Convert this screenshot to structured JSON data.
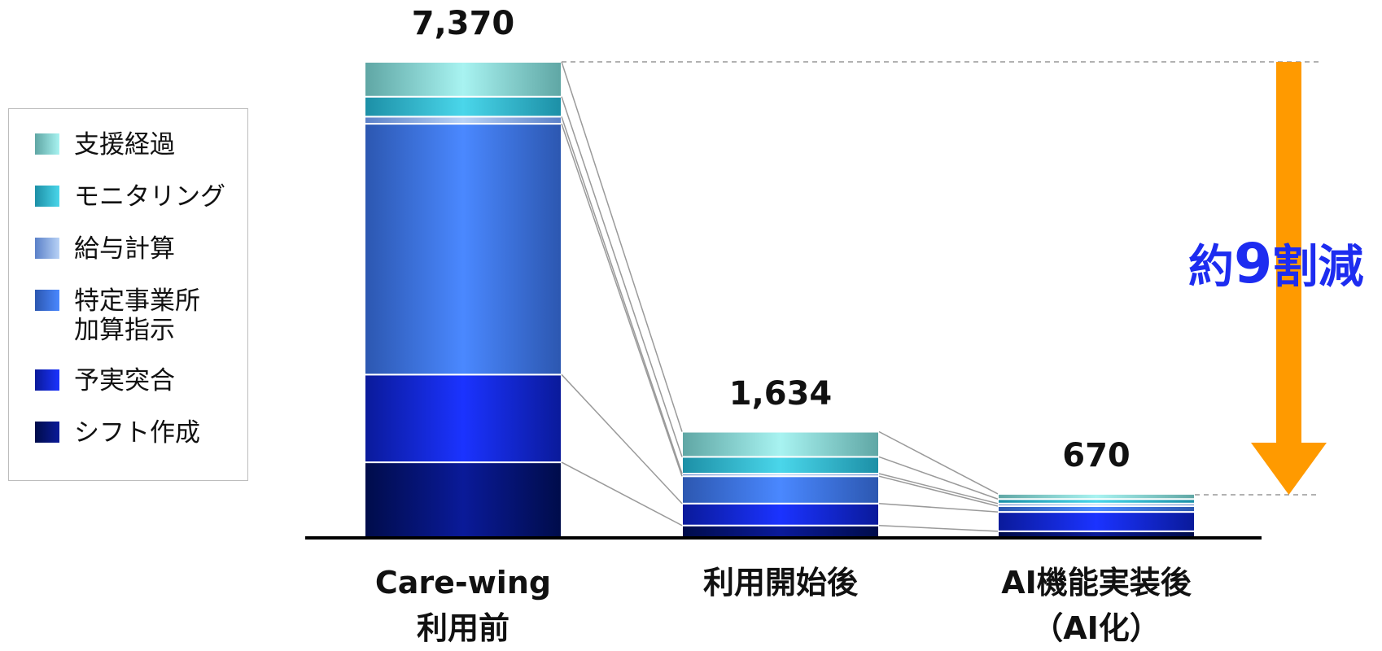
{
  "chart_data": {
    "type": "bar",
    "stacked": true,
    "title": "",
    "xlabel": "",
    "ylabel": "",
    "ylim": [
      0,
      7370
    ],
    "legend_placement": "left",
    "categories": [
      "Care-wing\n利用前",
      "利用開始後",
      "AI機能実装後\n（AI化）"
    ],
    "totals": [
      "7,370",
      "1,634",
      "670"
    ],
    "total_values": [
      7370,
      1634,
      670
    ],
    "series": [
      {
        "name": "シフト作成",
        "values": [
          1160,
          180,
          90
        ],
        "colors": [
          "#000c4a",
          "#0a1a99",
          "#000c4a"
        ]
      },
      {
        "name": "予実突合",
        "values": [
          1360,
          340,
          300
        ],
        "colors": [
          "#0a1a9a",
          "#1b33ff",
          "#0a1a9a"
        ]
      },
      {
        "name": "特定事業所\n加算指示",
        "values": [
          3890,
          424,
          90
        ],
        "colors": [
          "#2c57b0",
          "#4a88ff",
          "#2c57b0"
        ]
      },
      {
        "name": "給与計算",
        "values": [
          110,
          40,
          40
        ],
        "colors": [
          "#5a80c8",
          "#b8d2f6",
          "#5a80c8"
        ]
      },
      {
        "name": "モニタリング",
        "values": [
          310,
          260,
          70
        ],
        "colors": [
          "#1c8fa6",
          "#4ad6ea",
          "#1c8fa6"
        ]
      },
      {
        "name": "支援経過",
        "values": [
          540,
          390,
          80
        ],
        "colors": [
          "#5fa6a4",
          "#a8f3f1",
          "#5fa6a4"
        ]
      }
    ],
    "annotation": {
      "prefix": "約",
      "number": "9",
      "suffix": "割減",
      "color": "#1d2cf0",
      "arrow_color": "#ff9a00"
    }
  }
}
